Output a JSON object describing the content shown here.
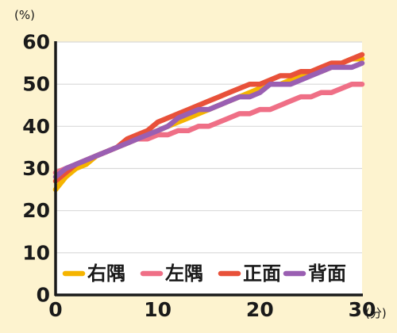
{
  "chart_data": {
    "type": "line",
    "y_unit": "(%)",
    "x_unit": "(分)",
    "xlim": [
      0,
      30
    ],
    "ylim": [
      0,
      60
    ],
    "x_ticks": [
      0,
      10,
      20,
      30
    ],
    "y_ticks": [
      0,
      10,
      20,
      30,
      40,
      50,
      60
    ],
    "grid": "horizontal",
    "legend_position": "bottom-center",
    "background": "#fdf3cf",
    "plot_background": "#ffffff",
    "series": [
      {
        "name": "右隅",
        "color": "#f5b400",
        "x": [
          0,
          1,
          2,
          3,
          4,
          5,
          6,
          7,
          8,
          9,
          10,
          11,
          12,
          13,
          14,
          15,
          16,
          17,
          18,
          19,
          20,
          21,
          22,
          23,
          24,
          25,
          26,
          27,
          28,
          29,
          30
        ],
        "y": [
          25,
          28,
          30,
          31,
          33,
          34,
          35,
          36,
          37,
          38,
          39,
          40,
          41,
          42,
          43,
          44,
          45,
          46,
          47,
          48,
          49,
          50,
          50,
          51,
          52,
          53,
          53,
          54,
          55,
          56,
          56
        ]
      },
      {
        "name": "左隅",
        "color": "#ef6f86",
        "x": [
          0,
          1,
          2,
          3,
          4,
          5,
          6,
          7,
          8,
          9,
          10,
          11,
          12,
          13,
          14,
          15,
          16,
          17,
          18,
          19,
          20,
          21,
          22,
          23,
          24,
          25,
          26,
          27,
          28,
          29,
          30
        ],
        "y": [
          29,
          30,
          31,
          32,
          33,
          34,
          35,
          36,
          37,
          37,
          38,
          38,
          39,
          39,
          40,
          40,
          41,
          42,
          43,
          43,
          44,
          44,
          45,
          46,
          47,
          47,
          48,
          48,
          49,
          50,
          50
        ]
      },
      {
        "name": "正面",
        "color": "#e8513a",
        "x": [
          0,
          1,
          2,
          3,
          4,
          5,
          6,
          7,
          8,
          9,
          10,
          11,
          12,
          13,
          14,
          15,
          16,
          17,
          18,
          19,
          20,
          21,
          22,
          23,
          24,
          25,
          26,
          27,
          28,
          29,
          30
        ],
        "y": [
          27,
          29,
          31,
          32,
          33,
          34,
          35,
          37,
          38,
          39,
          41,
          42,
          43,
          44,
          45,
          46,
          47,
          48,
          49,
          50,
          50,
          51,
          52,
          52,
          53,
          53,
          54,
          55,
          55,
          56,
          57
        ]
      },
      {
        "name": "背面",
        "color": "#9a5fb2",
        "x": [
          0,
          1,
          2,
          3,
          4,
          5,
          6,
          7,
          8,
          9,
          10,
          11,
          12,
          13,
          14,
          15,
          16,
          17,
          18,
          19,
          20,
          21,
          22,
          23,
          24,
          25,
          26,
          27,
          28,
          29,
          30
        ],
        "y": [
          28,
          30,
          31,
          32,
          33,
          34,
          35,
          36,
          37,
          38,
          39,
          40,
          42,
          43,
          44,
          44,
          45,
          46,
          47,
          47,
          48,
          50,
          50,
          50,
          51,
          52,
          53,
          54,
          54,
          54,
          55
        ]
      }
    ]
  }
}
